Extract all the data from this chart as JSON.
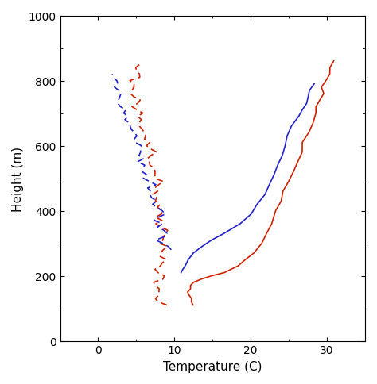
{
  "xlabel": "Temperature (C)",
  "ylabel": "Height (m)",
  "xlim": [
    -5,
    35
  ],
  "ylim": [
    0,
    1000
  ],
  "xticks": [
    0,
    10,
    20,
    30
  ],
  "yticks": [
    0,
    200,
    400,
    600,
    800,
    1000
  ],
  "temp_color": "#cc2200",
  "dewp_color": "#2222cc",
  "red_dashed": {
    "height": [
      110,
      120,
      130,
      140,
      150,
      160,
      170,
      180,
      190,
      200,
      210,
      220,
      230,
      240,
      250,
      260,
      270,
      280,
      290,
      300,
      310,
      320,
      330,
      340,
      350,
      360,
      370,
      380,
      390,
      400,
      410,
      420,
      430,
      440,
      450,
      460,
      470,
      480,
      490,
      500,
      510,
      520,
      530,
      540,
      550,
      560,
      570,
      580,
      590,
      600,
      610,
      620,
      630,
      640,
      650,
      660,
      670,
      680,
      690,
      700,
      710,
      720,
      730,
      740,
      750,
      760,
      770,
      780,
      790,
      800,
      810,
      820,
      830,
      840,
      850,
      860
    ],
    "temp": [
      8.5,
      8.0,
      7.5,
      7.8,
      8.2,
      8.0,
      7.5,
      7.8,
      8.2,
      8.5,
      8.0,
      7.5,
      8.0,
      8.5,
      9.0,
      8.5,
      8.0,
      8.5,
      9.0,
      8.5,
      8.0,
      8.5,
      9.0,
      8.5,
      8.2,
      8.0,
      8.5,
      8.2,
      8.0,
      8.5,
      8.0,
      7.8,
      8.0,
      7.5,
      7.8,
      8.0,
      7.8,
      7.5,
      8.0,
      7.5,
      7.2,
      7.5,
      7.2,
      7.0,
      7.2,
      7.0,
      6.8,
      7.0,
      6.8,
      6.5,
      6.2,
      6.0,
      6.2,
      6.0,
      5.8,
      5.5,
      5.8,
      5.5,
      5.2,
      5.5,
      5.2,
      5.0,
      5.2,
      5.0,
      4.8,
      4.5,
      4.8,
      5.0,
      4.8,
      4.5,
      5.0,
      5.5,
      5.0,
      4.5,
      5.0,
      5.5
    ]
  },
  "blue_dashed": {
    "height": [
      280,
      290,
      300,
      310,
      320,
      330,
      340,
      350,
      360,
      370,
      380,
      390,
      400,
      410,
      420,
      430,
      440,
      450,
      460,
      470,
      480,
      490,
      500,
      510,
      520,
      530,
      540,
      550,
      560,
      570,
      580,
      590,
      600,
      610,
      620,
      630,
      640,
      650,
      660,
      670,
      680,
      690,
      700,
      710,
      720,
      730,
      740,
      750,
      760,
      770,
      780,
      790,
      800,
      810,
      820
    ],
    "temp": [
      9.5,
      9.0,
      8.5,
      8.0,
      8.5,
      8.8,
      8.5,
      8.0,
      8.5,
      7.5,
      8.0,
      8.5,
      8.0,
      7.5,
      7.0,
      7.5,
      7.0,
      6.8,
      7.0,
      6.5,
      7.0,
      6.5,
      6.0,
      6.5,
      6.0,
      5.8,
      6.0,
      5.5,
      5.8,
      5.5,
      5.2,
      5.5,
      5.2,
      5.0,
      4.8,
      5.0,
      4.5,
      4.2,
      4.5,
      4.0,
      3.5,
      4.0,
      3.5,
      3.2,
      3.0,
      2.8,
      2.5,
      2.8,
      3.0,
      2.5,
      2.0,
      2.5,
      2.2,
      1.8,
      2.0
    ]
  },
  "red_solid": {
    "height": [
      110,
      120,
      130,
      140,
      150,
      160,
      170,
      180,
      190,
      200,
      210,
      220,
      230,
      250,
      270,
      300,
      330,
      360,
      400,
      430,
      460,
      490,
      520,
      550,
      580,
      610,
      640,
      670,
      700,
      720,
      740,
      760,
      780,
      800,
      820,
      840,
      860
    ],
    "temp": [
      12.5,
      12.3,
      12.2,
      12.1,
      12.0,
      12.1,
      12.3,
      12.8,
      13.5,
      15.0,
      16.5,
      17.5,
      18.5,
      19.5,
      20.5,
      21.5,
      22.2,
      22.8,
      23.5,
      24.0,
      24.5,
      25.0,
      25.5,
      26.0,
      26.5,
      27.0,
      27.5,
      28.0,
      28.4,
      28.7,
      29.0,
      29.3,
      29.5,
      29.8,
      30.2,
      30.5,
      30.8
    ]
  },
  "blue_solid": {
    "height": [
      210,
      220,
      230,
      250,
      270,
      290,
      310,
      330,
      360,
      390,
      420,
      450,
      480,
      510,
      540,
      570,
      600,
      630,
      660,
      690,
      710,
      730,
      750,
      770,
      790
    ],
    "temp": [
      11.0,
      11.2,
      11.5,
      11.8,
      12.5,
      13.5,
      15.0,
      16.5,
      18.5,
      20.0,
      21.0,
      21.8,
      22.5,
      23.0,
      23.5,
      24.0,
      24.5,
      25.0,
      25.5,
      26.2,
      26.8,
      27.2,
      27.5,
      27.8,
      28.2
    ]
  }
}
